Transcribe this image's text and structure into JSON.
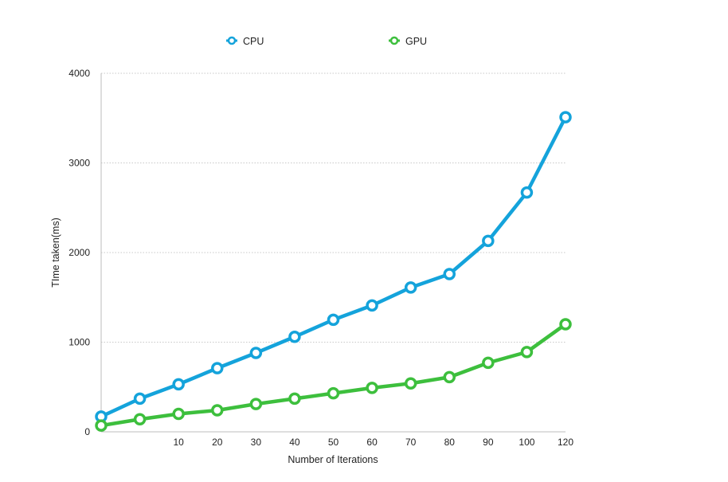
{
  "chart_data": {
    "type": "line",
    "xlabel": "Number of Iterations",
    "ylabel": "TIme taken(ms)",
    "ylim": [
      0,
      4000
    ],
    "y_ticks": [
      0,
      1000,
      2000,
      3000,
      4000
    ],
    "x": [
      "",
      "",
      "10",
      "20",
      "30",
      "40",
      "50",
      "60",
      "70",
      "80",
      "90",
      "100",
      "120"
    ],
    "grid": true,
    "legend_position": "top",
    "series": [
      {
        "name": "CPU",
        "color": "#14a3db",
        "values": [
          170,
          370,
          530,
          710,
          880,
          1060,
          1250,
          1410,
          1610,
          1760,
          2130,
          2670,
          3510
        ]
      },
      {
        "name": "GPU",
        "color": "#3dbf3d",
        "values": [
          70,
          140,
          200,
          240,
          310,
          370,
          430,
          490,
          540,
          610,
          770,
          890,
          1200
        ]
      }
    ]
  }
}
